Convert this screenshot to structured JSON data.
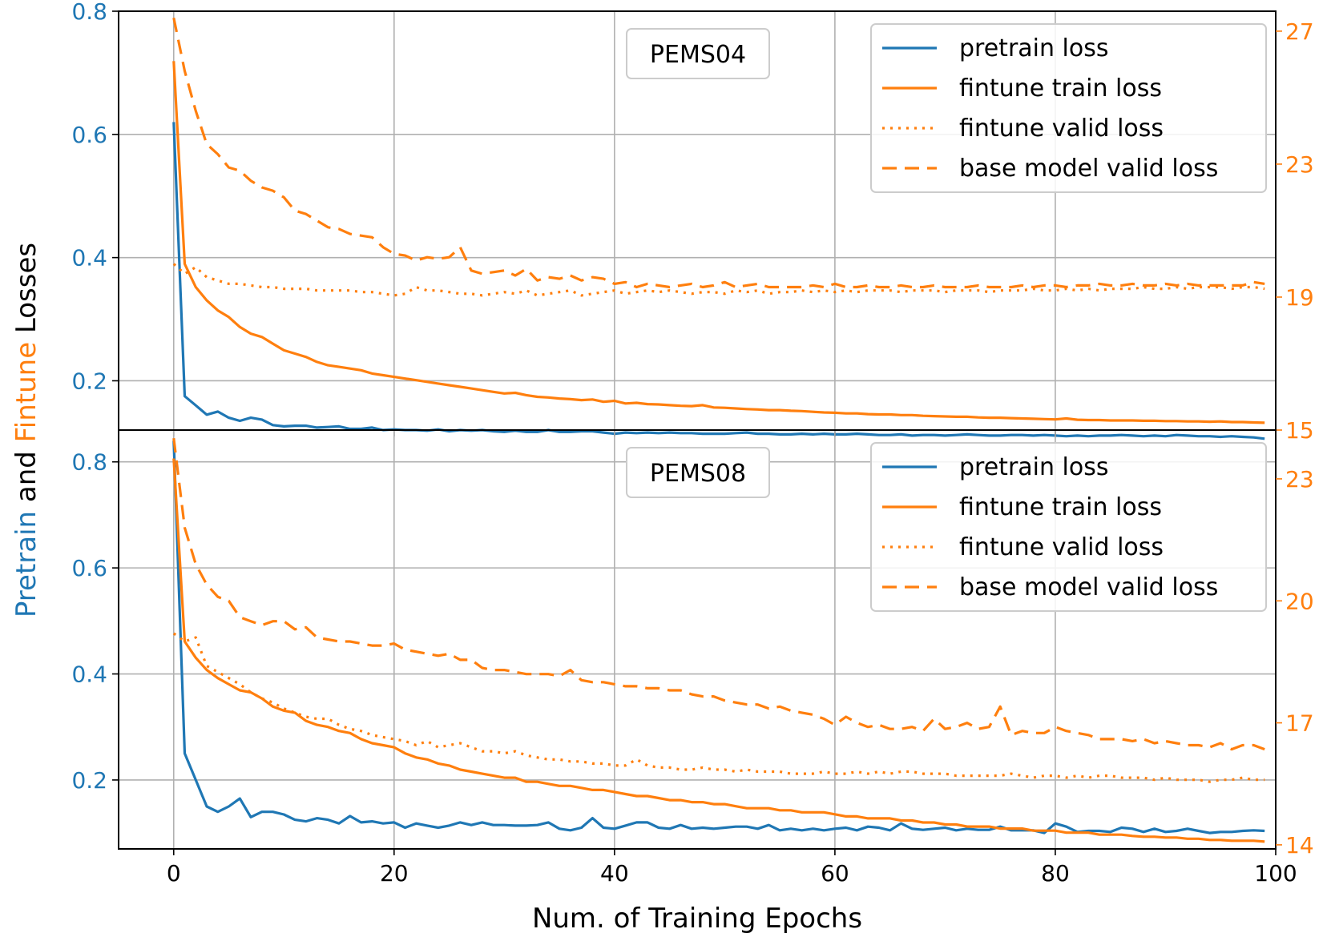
{
  "chart_data": [
    {
      "type": "line",
      "title": "PEMS04",
      "xlabel": "Num. of Training Epochs",
      "ylabel_parts": [
        "Pretrain",
        "and",
        "Fintune",
        "Losses"
      ],
      "xlim": [
        -5,
        100
      ],
      "ylim_left": [
        0.12,
        0.8
      ],
      "ylim_right": [
        15,
        27.6
      ],
      "xticks": [
        "0",
        "20",
        "40",
        "60",
        "80",
        "100"
      ],
      "xtick_values": [
        0,
        20,
        40,
        60,
        80,
        100
      ],
      "yticks_left": [
        "0.2",
        "0.4",
        "0.6",
        "0.8"
      ],
      "ytick_values_left": [
        0.2,
        0.4,
        0.6,
        0.8
      ],
      "yticks_right": [
        "15",
        "19",
        "23",
        "27"
      ],
      "ytick_values_right": [
        15,
        19,
        23,
        27
      ],
      "grid": true,
      "legend_position": "top-right",
      "series": [
        {
          "name": "pretrain loss",
          "axis": "left",
          "style": "solid",
          "color": "#1f77b4",
          "values": [
            0.62,
            0.175,
            0.16,
            0.145,
            0.15,
            0.14,
            0.135,
            0.14,
            0.137,
            0.128,
            0.126,
            0.127,
            0.127,
            0.124,
            0.125,
            0.126,
            0.122,
            0.122,
            0.124,
            0.12,
            0.121,
            0.12,
            0.12,
            0.119,
            0.121,
            0.118,
            0.12,
            0.119,
            0.12,
            0.118,
            0.117,
            0.119,
            0.117,
            0.117,
            0.12,
            0.117,
            0.117,
            0.118,
            0.118,
            0.116,
            0.114,
            0.116,
            0.115,
            0.116,
            0.115,
            0.116,
            0.115,
            0.115,
            0.114,
            0.114,
            0.114,
            0.115,
            0.116,
            0.114,
            0.114,
            0.113,
            0.113,
            0.114,
            0.113,
            0.114,
            0.113,
            0.113,
            0.114,
            0.113,
            0.112,
            0.112,
            0.113,
            0.111,
            0.112,
            0.112,
            0.111,
            0.112,
            0.113,
            0.112,
            0.111,
            0.111,
            0.112,
            0.112,
            0.111,
            0.112,
            0.111,
            0.11,
            0.111,
            0.11,
            0.111,
            0.111,
            0.112,
            0.111,
            0.11,
            0.111,
            0.11,
            0.112,
            0.111,
            0.11,
            0.11,
            0.109,
            0.11,
            0.109,
            0.108,
            0.106
          ]
        },
        {
          "name": "fintune train loss",
          "axis": "right",
          "style": "solid",
          "color": "#ff7f0e",
          "values": [
            26.1,
            20.0,
            19.3,
            18.9,
            18.6,
            18.4,
            18.1,
            17.9,
            17.8,
            17.6,
            17.4,
            17.3,
            17.2,
            17.05,
            16.95,
            16.9,
            16.85,
            16.8,
            16.7,
            16.65,
            16.6,
            16.55,
            16.5,
            16.45,
            16.4,
            16.35,
            16.3,
            16.25,
            16.2,
            16.15,
            16.1,
            16.12,
            16.05,
            16.0,
            15.98,
            15.95,
            15.93,
            15.9,
            15.92,
            15.85,
            15.88,
            15.8,
            15.82,
            15.78,
            15.77,
            15.75,
            15.73,
            15.72,
            15.75,
            15.68,
            15.67,
            15.65,
            15.63,
            15.62,
            15.6,
            15.6,
            15.58,
            15.57,
            15.55,
            15.53,
            15.52,
            15.5,
            15.5,
            15.48,
            15.47,
            15.47,
            15.45,
            15.45,
            15.43,
            15.42,
            15.41,
            15.4,
            15.4,
            15.38,
            15.37,
            15.37,
            15.36,
            15.35,
            15.34,
            15.33,
            15.32,
            15.35,
            15.31,
            15.3,
            15.3,
            15.29,
            15.29,
            15.29,
            15.28,
            15.28,
            15.27,
            15.27,
            15.26,
            15.26,
            15.25,
            15.26,
            15.24,
            15.24,
            15.23,
            15.22
          ]
        },
        {
          "name": "fintune valid loss",
          "axis": "right",
          "style": "dotted",
          "color": "#ff7f0e",
          "values": [
            20.0,
            19.7,
            19.9,
            19.6,
            19.5,
            19.4,
            19.4,
            19.35,
            19.3,
            19.3,
            19.25,
            19.25,
            19.25,
            19.2,
            19.2,
            19.2,
            19.2,
            19.15,
            19.15,
            19.1,
            19.05,
            19.1,
            19.3,
            19.2,
            19.2,
            19.15,
            19.1,
            19.1,
            19.05,
            19.1,
            19.15,
            19.1,
            19.2,
            19.05,
            19.1,
            19.15,
            19.2,
            19.05,
            19.1,
            19.15,
            19.2,
            19.1,
            19.15,
            19.2,
            19.15,
            19.2,
            19.15,
            19.1,
            19.15,
            19.15,
            19.1,
            19.2,
            19.15,
            19.2,
            19.1,
            19.15,
            19.15,
            19.2,
            19.15,
            19.2,
            19.15,
            19.2,
            19.15,
            19.2,
            19.2,
            19.2,
            19.15,
            19.2,
            19.2,
            19.2,
            19.15,
            19.2,
            19.2,
            19.2,
            19.15,
            19.2,
            19.2,
            19.2,
            19.25,
            19.2,
            19.2,
            19.25,
            19.2,
            19.25,
            19.2,
            19.25,
            19.25,
            19.25,
            19.3,
            19.25,
            19.25,
            19.3,
            19.25,
            19.3,
            19.3,
            19.3,
            19.25,
            19.3,
            19.3,
            19.25
          ]
        },
        {
          "name": "base model valid loss",
          "axis": "right",
          "style": "dashed",
          "color": "#ff7f0e",
          "values": [
            27.4,
            25.8,
            24.6,
            23.6,
            23.3,
            22.9,
            22.8,
            22.5,
            22.3,
            22.2,
            22.0,
            21.6,
            21.5,
            21.3,
            21.1,
            21.05,
            20.9,
            20.85,
            20.8,
            20.5,
            20.3,
            20.25,
            20.1,
            20.2,
            20.15,
            20.2,
            20.5,
            19.8,
            19.7,
            19.75,
            19.8,
            19.65,
            19.85,
            19.5,
            19.6,
            19.55,
            19.65,
            19.5,
            19.6,
            19.55,
            19.4,
            19.45,
            19.3,
            19.4,
            19.35,
            19.3,
            19.35,
            19.4,
            19.3,
            19.35,
            19.45,
            19.3,
            19.35,
            19.4,
            19.3,
            19.3,
            19.3,
            19.3,
            19.35,
            19.3,
            19.4,
            19.3,
            19.3,
            19.35,
            19.3,
            19.3,
            19.35,
            19.3,
            19.3,
            19.35,
            19.3,
            19.3,
            19.3,
            19.35,
            19.3,
            19.3,
            19.3,
            19.35,
            19.3,
            19.35,
            19.35,
            19.3,
            19.35,
            19.35,
            19.4,
            19.35,
            19.35,
            19.4,
            19.35,
            19.35,
            19.4,
            19.35,
            19.4,
            19.35,
            19.35,
            19.35,
            19.35,
            19.35,
            19.45,
            19.4
          ]
        }
      ]
    },
    {
      "type": "line",
      "title": "PEMS08",
      "xlim": [
        -5,
        100
      ],
      "ylim_left": [
        0.07,
        0.86
      ],
      "ylim_right": [
        13.9,
        24.2
      ],
      "xticks": [
        "0",
        "20",
        "40",
        "60",
        "80",
        "100"
      ],
      "xtick_values": [
        0,
        20,
        40,
        60,
        80,
        100
      ],
      "yticks_left": [
        "0.2",
        "0.4",
        "0.6",
        "0.8"
      ],
      "ytick_values_left": [
        0.2,
        0.4,
        0.6,
        0.8
      ],
      "yticks_right": [
        "14",
        "17",
        "20",
        "23"
      ],
      "ytick_values_right": [
        14,
        17,
        20,
        23
      ],
      "grid": true,
      "legend_position": "top-right",
      "series": [
        {
          "name": "pretrain loss",
          "axis": "left",
          "style": "solid",
          "color": "#1f77b4",
          "values": [
            0.84,
            0.25,
            0.2,
            0.15,
            0.14,
            0.15,
            0.165,
            0.13,
            0.14,
            0.14,
            0.135,
            0.125,
            0.122,
            0.128,
            0.125,
            0.118,
            0.132,
            0.12,
            0.122,
            0.118,
            0.12,
            0.11,
            0.118,
            0.114,
            0.11,
            0.114,
            0.12,
            0.115,
            0.12,
            0.115,
            0.115,
            0.114,
            0.114,
            0.115,
            0.12,
            0.108,
            0.105,
            0.11,
            0.128,
            0.11,
            0.108,
            0.114,
            0.12,
            0.12,
            0.11,
            0.108,
            0.115,
            0.108,
            0.11,
            0.108,
            0.11,
            0.112,
            0.112,
            0.108,
            0.115,
            0.105,
            0.108,
            0.105,
            0.108,
            0.105,
            0.108,
            0.11,
            0.105,
            0.112,
            0.11,
            0.105,
            0.118,
            0.108,
            0.106,
            0.108,
            0.11,
            0.105,
            0.108,
            0.106,
            0.106,
            0.112,
            0.105,
            0.105,
            0.105,
            0.1,
            0.118,
            0.112,
            0.102,
            0.104,
            0.104,
            0.102,
            0.11,
            0.108,
            0.102,
            0.108,
            0.102,
            0.104,
            0.108,
            0.104,
            0.1,
            0.102,
            0.102,
            0.104,
            0.105,
            0.104
          ]
        },
        {
          "name": "fintune train loss",
          "axis": "right",
          "style": "solid",
          "color": "#ff7f0e",
          "values": [
            23.5,
            19.0,
            18.6,
            18.3,
            18.1,
            17.95,
            17.8,
            17.75,
            17.6,
            17.4,
            17.3,
            17.25,
            17.05,
            16.95,
            16.9,
            16.8,
            16.75,
            16.6,
            16.5,
            16.45,
            16.4,
            16.25,
            16.15,
            16.1,
            16.0,
            15.95,
            15.85,
            15.8,
            15.75,
            15.7,
            15.65,
            15.65,
            15.55,
            15.55,
            15.5,
            15.45,
            15.45,
            15.4,
            15.35,
            15.35,
            15.3,
            15.25,
            15.2,
            15.2,
            15.15,
            15.1,
            15.1,
            15.05,
            15.05,
            15.0,
            15.0,
            14.95,
            14.9,
            14.9,
            14.9,
            14.85,
            14.85,
            14.8,
            14.8,
            14.8,
            14.75,
            14.7,
            14.7,
            14.65,
            14.65,
            14.65,
            14.6,
            14.6,
            14.55,
            14.55,
            14.5,
            14.5,
            14.45,
            14.45,
            14.45,
            14.4,
            14.4,
            14.4,
            14.35,
            14.35,
            14.35,
            14.3,
            14.3,
            14.3,
            14.25,
            14.25,
            14.25,
            14.22,
            14.2,
            14.2,
            14.18,
            14.18,
            14.15,
            14.15,
            14.12,
            14.12,
            14.1,
            14.1,
            14.1,
            14.08
          ]
        },
        {
          "name": "fintune valid loss",
          "axis": "right",
          "style": "dotted",
          "color": "#ff7f0e",
          "values": [
            19.2,
            19.0,
            19.1,
            18.4,
            18.25,
            18.1,
            17.95,
            17.75,
            17.6,
            17.5,
            17.35,
            17.25,
            17.15,
            17.1,
            17.1,
            16.95,
            16.85,
            16.8,
            16.7,
            16.65,
            16.6,
            16.55,
            16.45,
            16.55,
            16.4,
            16.45,
            16.5,
            16.4,
            16.3,
            16.3,
            16.25,
            16.3,
            16.2,
            16.15,
            16.1,
            16.1,
            16.05,
            16.05,
            16.0,
            16.0,
            15.95,
            15.95,
            16.1,
            15.95,
            15.9,
            15.9,
            15.85,
            15.85,
            15.9,
            15.85,
            15.85,
            15.8,
            15.85,
            15.8,
            15.8,
            15.8,
            15.75,
            15.75,
            15.75,
            15.8,
            15.75,
            15.75,
            15.8,
            15.75,
            15.8,
            15.75,
            15.8,
            15.8,
            15.75,
            15.75,
            15.75,
            15.7,
            15.7,
            15.7,
            15.7,
            15.7,
            15.75,
            15.7,
            15.65,
            15.7,
            15.7,
            15.65,
            15.7,
            15.65,
            15.7,
            15.7,
            15.65,
            15.65,
            15.65,
            15.6,
            15.65,
            15.6,
            15.6,
            15.6,
            15.55,
            15.6,
            15.6,
            15.65,
            15.6,
            15.6
          ]
        },
        {
          "name": "base model valid loss",
          "axis": "right",
          "style": "dashed",
          "color": "#ff7f0e",
          "values": [
            24.0,
            21.8,
            20.9,
            20.4,
            20.1,
            20.0,
            19.6,
            19.5,
            19.4,
            19.5,
            19.5,
            19.3,
            19.35,
            19.1,
            19.05,
            19.0,
            19.0,
            18.95,
            18.9,
            18.9,
            18.95,
            18.8,
            18.75,
            18.7,
            18.65,
            18.7,
            18.55,
            18.55,
            18.35,
            18.3,
            18.3,
            18.25,
            18.2,
            18.2,
            18.2,
            18.15,
            18.3,
            18.05,
            18.0,
            18.0,
            17.95,
            17.9,
            17.9,
            17.85,
            17.85,
            17.8,
            17.8,
            17.7,
            17.65,
            17.65,
            17.55,
            17.5,
            17.45,
            17.45,
            17.35,
            17.4,
            17.3,
            17.25,
            17.2,
            17.1,
            16.95,
            17.15,
            17.0,
            16.9,
            16.95,
            16.85,
            16.85,
            16.9,
            16.8,
            17.1,
            16.85,
            16.9,
            17.0,
            16.85,
            16.9,
            17.4,
            16.7,
            16.8,
            16.75,
            16.75,
            16.9,
            16.8,
            16.75,
            16.7,
            16.6,
            16.6,
            16.6,
            16.55,
            16.6,
            16.5,
            16.55,
            16.5,
            16.45,
            16.45,
            16.4,
            16.5,
            16.35,
            16.45,
            16.45,
            16.35
          ]
        }
      ]
    }
  ],
  "colors": {
    "blue": "#1f77b4",
    "orange": "#ff7f0e",
    "grid": "#b0b0b0"
  }
}
